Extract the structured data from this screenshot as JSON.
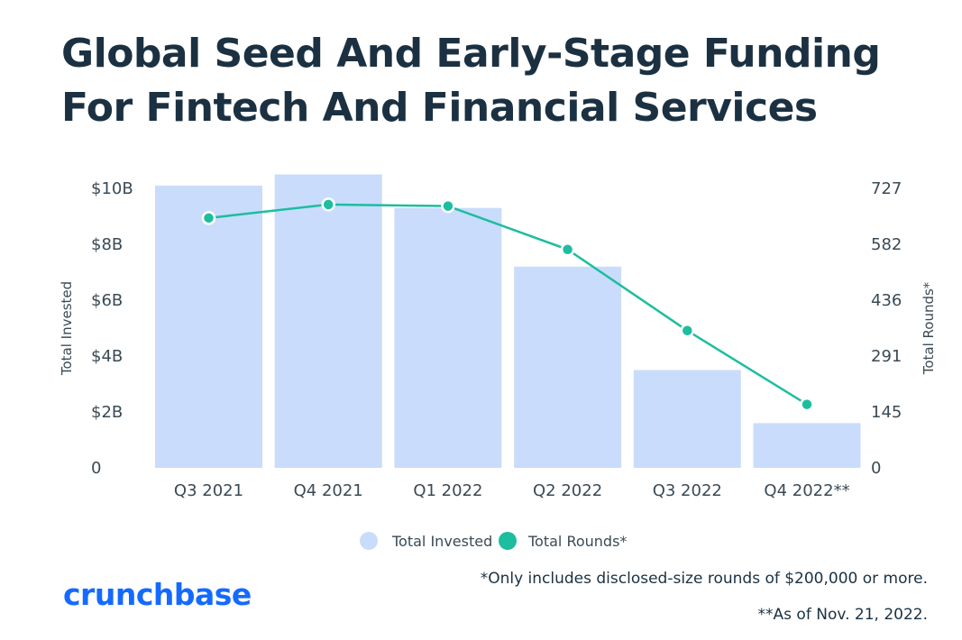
{
  "title_lines": [
    "Global Seed And Early-Stage Funding",
    "For Fintech And Financial Services"
  ],
  "brand": "crunchbase",
  "notes": [
    "*Only includes disclosed-size rounds of $200,000 or more.",
    "**As of Nov. 21, 2022."
  ],
  "colors": {
    "bar": "#c9dcfb",
    "line": "#1dbd9f",
    "brand": "#146aff",
    "text": "#1b3142",
    "axis_text": "#3a4a55"
  },
  "chart_data": {
    "type": "bar",
    "categories": [
      "Q3 2021",
      "Q4 2021",
      "Q1 2022",
      "Q2 2022",
      "Q3 2022",
      "Q4 2022**"
    ],
    "title": "Global Seed And Early-Stage Funding For Fintech And Financial Services",
    "ylabel": "Total Invested",
    "y2label": "Total Rounds*",
    "ylim": [
      0,
      10
    ],
    "y2lim": [
      0,
      727
    ],
    "yticks": [
      "0",
      "$2B",
      "$4B",
      "$6B",
      "$8B",
      "$10B"
    ],
    "y2ticks": [
      "0",
      "145",
      "291",
      "436",
      "582",
      "727"
    ],
    "series": [
      {
        "name": "Total Invested",
        "kind": "bar",
        "unit": "billion USD",
        "values": [
          10.1,
          10.5,
          9.3,
          7.2,
          3.5,
          1.6
        ]
      },
      {
        "name": "Total Rounds*",
        "kind": "line",
        "axis": "right",
        "values": [
          650,
          685,
          681,
          568,
          357,
          165
        ]
      }
    ],
    "legend": [
      "Total Invested",
      "Total Rounds*"
    ],
    "legend_position": "bottom",
    "grid": false
  }
}
